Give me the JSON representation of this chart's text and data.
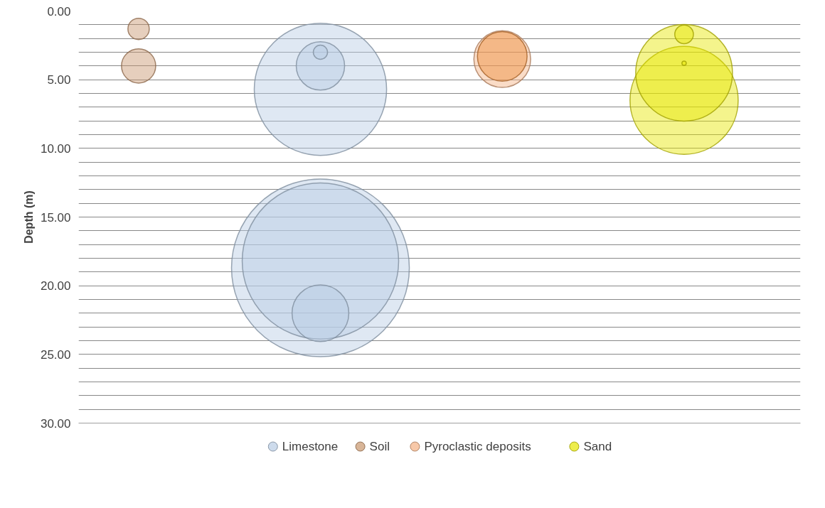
{
  "chart_data": {
    "type": "bubble",
    "ylabel": "Depth (m)",
    "categories": [
      null,
      null,
      null,
      null
    ],
    "ylim": [
      30,
      0
    ],
    "yticks": [
      {
        "value": 0,
        "label": "0.00"
      },
      {
        "value": 1,
        "label": null
      },
      {
        "value": 2,
        "label": null
      },
      {
        "value": 3,
        "label": null
      },
      {
        "value": 4,
        "label": null
      },
      {
        "value": 5,
        "label": "5.00"
      },
      {
        "value": 6,
        "label": null
      },
      {
        "value": 7,
        "label": null
      },
      {
        "value": 8,
        "label": null
      },
      {
        "value": 9,
        "label": null
      },
      {
        "value": 10,
        "label": "10.00"
      },
      {
        "value": 11,
        "label": null
      },
      {
        "value": 12,
        "label": null
      },
      {
        "value": 13,
        "label": null
      },
      {
        "value": 14,
        "label": null
      },
      {
        "value": 15,
        "label": "15.00"
      },
      {
        "value": 16,
        "label": null
      },
      {
        "value": 17,
        "label": null
      },
      {
        "value": 18,
        "label": null
      },
      {
        "value": 19,
        "label": null
      },
      {
        "value": 20,
        "label": "20.00"
      },
      {
        "value": 21,
        "label": null
      },
      {
        "value": 22,
        "label": null
      },
      {
        "value": 23,
        "label": null
      },
      {
        "value": 24,
        "label": null
      },
      {
        "value": 25,
        "label": "25.00"
      },
      {
        "value": 26,
        "label": null
      },
      {
        "value": 27,
        "label": null
      },
      {
        "value": 28,
        "label": null
      },
      {
        "value": 29,
        "label": null
      },
      {
        "value": 30,
        "label": "30.00"
      }
    ],
    "grid": "y",
    "legend": "bottom",
    "tick_labels": "y",
    "marker": "circle",
    "series": [
      {
        "name": "Limestone",
        "color": "#b8cce4",
        "values": [
          null,
          18.7,
          null,
          null
        ],
        "sizes": [
          null,
          1,
          null,
          null
        ]
      },
      {
        "color": "#b8cce4",
        "values": [
          null,
          18.2,
          null,
          null
        ],
        "sizes": [
          null,
          0.774,
          null,
          null
        ]
      },
      {
        "color": "#b8cce4",
        "values": [
          null,
          5.7,
          null,
          null
        ],
        "sizes": [
          null,
          0.554,
          null,
          null
        ]
      },
      {
        "color": "#b8cce4",
        "values": [
          null,
          22.0,
          null,
          null
        ],
        "sizes": [
          null,
          0.102,
          null,
          null
        ]
      },
      {
        "color": "#b8cce4",
        "values": [
          null,
          4.0,
          null,
          null
        ],
        "sizes": [
          null,
          0.074,
          null,
          null
        ]
      },
      {
        "color": "#b8cce4",
        "values": [
          null,
          3.0,
          null,
          null
        ],
        "sizes": [
          null,
          0.0064,
          null,
          null
        ]
      },
      {
        "name": "Soil",
        "color": "#c8956c",
        "values": [
          4.0,
          null,
          null,
          null
        ],
        "sizes": [
          0.037,
          null,
          null,
          null
        ]
      },
      {
        "color": "#c8956c",
        "values": [
          1.3,
          null,
          null,
          null
        ],
        "sizes": [
          0.0144,
          null,
          null,
          null
        ]
      },
      {
        "name": "Pyroclastic deposits",
        "color": "#f4b183",
        "values": [
          null,
          null,
          3.5,
          null
        ],
        "sizes": [
          null,
          null,
          0.102,
          null
        ]
      },
      {
        "color": "#ed8b3a",
        "values": [
          null,
          null,
          3.3,
          null
        ],
        "sizes": [
          null,
          null,
          0.078,
          null
        ]
      },
      {
        "name": "Sand",
        "color": "#e6e600",
        "values": [
          null,
          null,
          null,
          6.5
        ],
        "sizes": [
          null,
          null,
          null,
          0.37
        ]
      },
      {
        "color": "#e6e600",
        "values": [
          null,
          null,
          null,
          4.5
        ],
        "sizes": [
          null,
          null,
          null,
          0.296
        ]
      },
      {
        "color": "#e6e600",
        "values": [
          null,
          null,
          null,
          1.7
        ],
        "sizes": [
          null,
          null,
          null,
          0.011
        ]
      },
      {
        "color": "#e6e600",
        "values": [
          null,
          null,
          null,
          3.8
        ],
        "sizes": [
          null,
          null,
          null,
          0.0006
        ]
      }
    ]
  }
}
